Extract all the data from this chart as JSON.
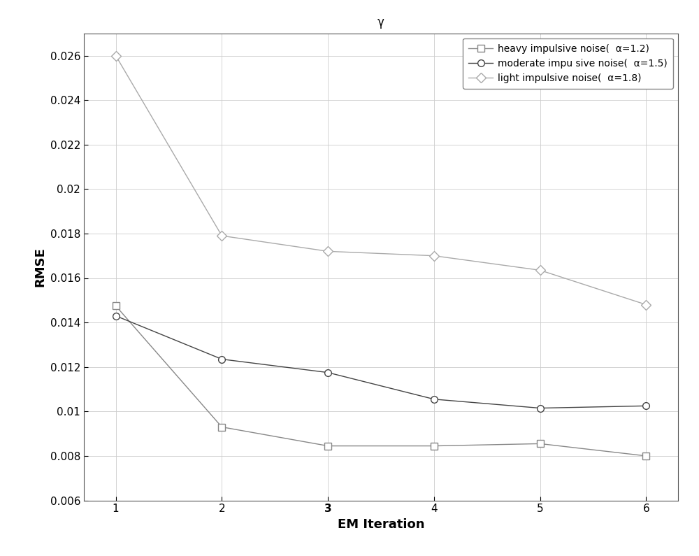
{
  "title": "γ",
  "xlabel": "EM Iteration",
  "ylabel": "RMSE",
  "x": [
    1,
    2,
    3,
    4,
    5,
    6
  ],
  "series": [
    {
      "label": "heavy impulsive noise(  α=1.2)",
      "values": [
        0.01475,
        0.0093,
        0.00845,
        0.00845,
        0.00855,
        0.008
      ],
      "marker": "s",
      "color": "#888888",
      "linewidth": 1.0
    },
    {
      "label": "moderate impu sive noise(  α=1.5)",
      "values": [
        0.0143,
        0.01235,
        0.01175,
        0.01055,
        0.01015,
        0.01025
      ],
      "marker": "o",
      "color": "#444444",
      "linewidth": 1.0
    },
    {
      "label": "light impulsive noise(  α=1.8)",
      "values": [
        0.026,
        0.0179,
        0.0172,
        0.017,
        0.01635,
        0.0148
      ],
      "marker": "D",
      "color": "#aaaaaa",
      "linewidth": 1.0
    }
  ],
  "xlim": [
    0.7,
    6.3
  ],
  "ylim": [
    0.006,
    0.027
  ],
  "yticks": [
    0.006,
    0.008,
    0.01,
    0.012,
    0.014,
    0.016,
    0.018,
    0.02,
    0.022,
    0.024,
    0.026
  ],
  "ytick_labels": [
    "0.006",
    "0.008",
    "0.01",
    "0.012",
    "0.014",
    "0.016",
    "0.018",
    "0.02",
    "0.022",
    "0.024",
    "0.026"
  ],
  "xticks": [
    1,
    2,
    3,
    4,
    5,
    6
  ],
  "grid": true,
  "legend_loc": "upper right",
  "background_color": "#ffffff",
  "title_fontsize": 12,
  "axis_label_fontsize": 13,
  "tick_fontsize": 11,
  "legend_fontsize": 10,
  "markersize": 7
}
